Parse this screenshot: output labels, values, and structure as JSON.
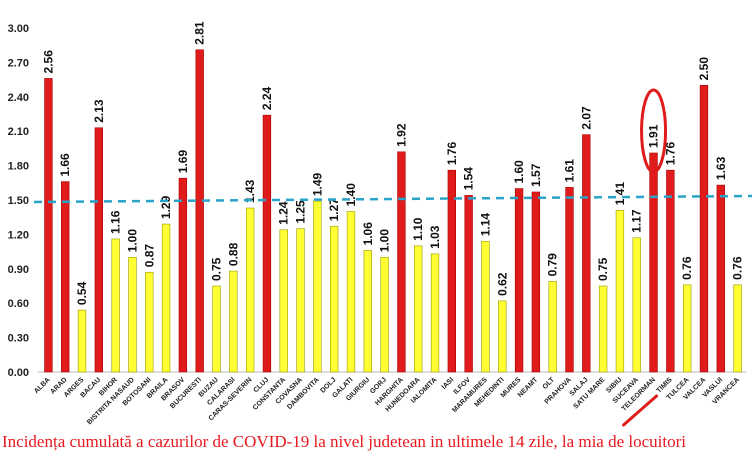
{
  "chart_data": {
    "type": "bar",
    "categories": [
      "ALBA",
      "ARAD",
      "ARGES",
      "BACAU",
      "BIHOR",
      "BISTRITA NASAUD",
      "BOTOSANI",
      "BRAILA",
      "BRASOV",
      "BUCURESTI",
      "BUZAU",
      "CALARASI",
      "CARAS-SEVERIN",
      "CLUJ",
      "CONSTANTA",
      "COVASNA",
      "DAMBOVITA",
      "DOLJ",
      "GALATI",
      "GIURGIU",
      "GORJ",
      "HARGHITA",
      "HUNEDOARA",
      "IALOMITA",
      "IASI",
      "ILFOV",
      "MARAMURES",
      "MEHEDINTI",
      "MURES",
      "NEAMT",
      "OLT",
      "PRAHOVA",
      "SALAJ",
      "SATU MARE",
      "SIBIU",
      "SUCEAVA",
      "TELEORMAN",
      "TIMIS",
      "TULCEA",
      "VALCEA",
      "VASLUI",
      "VRANCEA"
    ],
    "values": [
      2.56,
      1.66,
      0.54,
      2.13,
      1.16,
      1.0,
      0.87,
      1.29,
      1.69,
      2.81,
      0.75,
      0.88,
      1.43,
      2.24,
      1.24,
      1.25,
      1.49,
      1.27,
      1.4,
      1.06,
      1.0,
      1.92,
      1.1,
      1.03,
      1.76,
      1.54,
      1.14,
      0.62,
      1.6,
      1.57,
      0.79,
      1.61,
      2.07,
      0.75,
      1.41,
      1.17,
      1.91,
      1.76,
      0.76,
      2.5,
      1.63,
      0.76
    ],
    "data_labels": [
      "2.56",
      "1.66",
      "0.54",
      "2.13",
      "1.16",
      "1.00",
      "0.87",
      "1.29",
      "1.69",
      "2.81",
      "0.75",
      "0.88",
      "1.43",
      "2.24",
      "1.24",
      "1.25",
      "1.49",
      "1.27",
      "1.40",
      "1.06",
      "1.00",
      "1.92",
      "1.10",
      "1.03",
      "1.76",
      "1.54",
      "1.14",
      "0.62",
      "1.60",
      "1.57",
      "0.79",
      "1.61",
      "2.07",
      "0.75",
      "1.41",
      "1.17",
      "1.91",
      "1.76",
      "0.76",
      "2.50",
      "1.63",
      "0.76"
    ],
    "threshold": 1.5,
    "highlighted_category": "TELEORMAN",
    "title": "Incidența cumulată a cazurilor de COVID-19 la nivel judetean in ultimele 14 zile, la mia de locuitori",
    "xlabel": "",
    "ylabel": "",
    "ylim": [
      0,
      3.0
    ],
    "yticks": [
      "0.00",
      "0.30",
      "0.60",
      "0.90",
      "1.20",
      "1.50",
      "1.80",
      "2.10",
      "2.40",
      "2.70",
      "3.00"
    ],
    "grid": false,
    "colors": {
      "above": "#e01b1b",
      "below": "#ffff33",
      "bar_edge": "#9a9a00",
      "threshold_line": "#29a3c9",
      "highlight": "#e01b1b",
      "caption": "#e8181d"
    }
  }
}
